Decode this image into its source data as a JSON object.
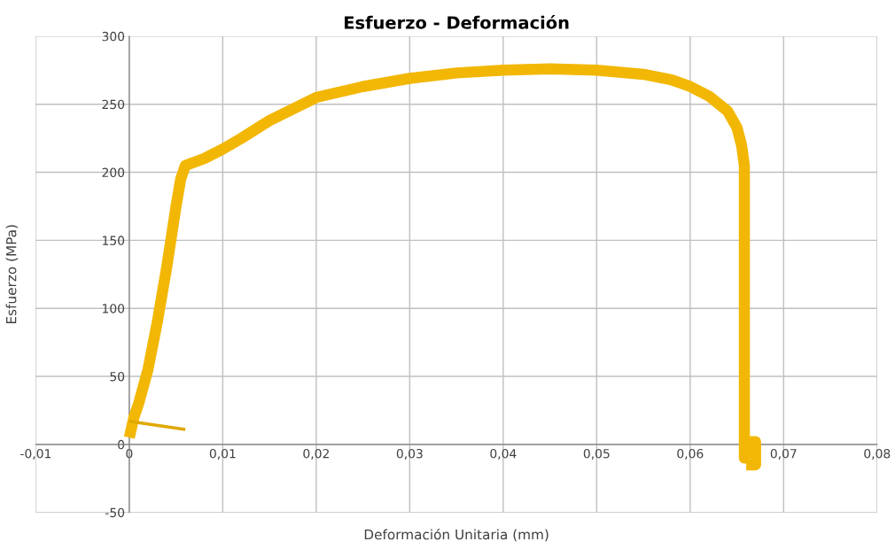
{
  "chart_data": {
    "type": "line",
    "title": "Esfuerzo - Deformación",
    "xlabel": "Deformación Unitaria (mm)",
    "ylabel": "Esfuerzo (MPa)",
    "series": [
      {
        "color": "#f2b705",
        "x": [
          0,
          0.0005,
          0.001,
          0.002,
          0.003,
          0.004,
          0.005,
          0.0055,
          0.006,
          0.008,
          0.01,
          0.012,
          0.015,
          0.02,
          0.025,
          0.03,
          0.035,
          0.04,
          0.045,
          0.05,
          0.055,
          0.058,
          0.06,
          0.062,
          0.064,
          0.065,
          0.0655,
          0.0658,
          0.0658,
          0.066,
          0.067,
          0.067,
          0.066
        ],
        "values": [
          5,
          20,
          30,
          55,
          90,
          130,
          175,
          195,
          205,
          210,
          217,
          225,
          238,
          255,
          263,
          269,
          273,
          275,
          276,
          275,
          272,
          268,
          263,
          256,
          245,
          233,
          220,
          205,
          -10,
          2,
          2,
          -15,
          -15
        ]
      },
      {
        "color": "#e0a800",
        "x": [
          0,
          0.006
        ],
        "values": [
          17,
          11
        ]
      }
    ],
    "xlim": [
      -0.01,
      0.08
    ],
    "ylim": [
      -50,
      300
    ],
    "xticks": [
      {
        "value": -0.01,
        "label": "-0,01"
      },
      0,
      {
        "value": 0.01,
        "label": "0,01"
      },
      {
        "value": 0.02,
        "label": "0,02"
      },
      {
        "value": 0.03,
        "label": "0,03"
      },
      {
        "value": 0.04,
        "label": "0,04"
      },
      {
        "value": 0.05,
        "label": "0,05"
      },
      {
        "value": 0.06,
        "label": "0,06"
      },
      {
        "value": 0.07,
        "label": "0,07"
      },
      {
        "value": 0.08,
        "label": "0,08"
      }
    ],
    "yticks": [
      -50,
      0,
      50,
      100,
      150,
      200,
      250,
      300
    ],
    "grid": true,
    "legend": false,
    "marker": "none",
    "line_style": "solid"
  }
}
